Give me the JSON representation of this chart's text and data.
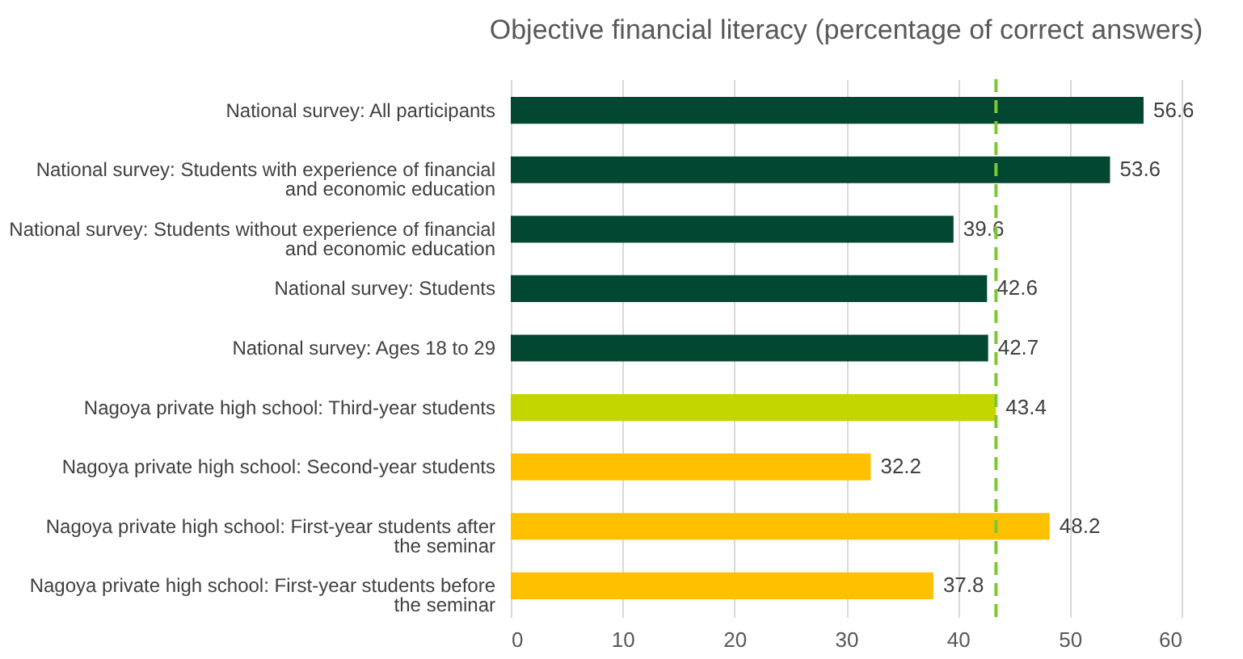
{
  "chart_data": {
    "type": "bar",
    "orientation": "horizontal",
    "title": "Objective financial literacy (percentage of correct answers)",
    "categories": [
      "National survey: All participants",
      "National survey: Students with experience of financial\nand economic education",
      "National survey: Students without experience of financial\nand economic education",
      "National survey: Students",
      "National survey: Ages 18 to 29",
      "Nagoya private high school: Third-year students",
      "Nagoya private high school: Second-year students",
      "Nagoya private high school: First-year students after\nthe seminar",
      "Nagoya private high school: First-year students before\nthe seminar"
    ],
    "values": [
      56.6,
      53.6,
      39.6,
      42.6,
      42.7,
      43.4,
      32.2,
      48.2,
      37.8
    ],
    "colors": [
      "#024731",
      "#024731",
      "#024731",
      "#024731",
      "#024731",
      "#c4d600",
      "#ffc000",
      "#ffc000",
      "#ffc000"
    ],
    "xlim": [
      0,
      60
    ],
    "xticks": [
      0,
      10,
      20,
      30,
      40,
      50,
      60
    ],
    "grid": "x",
    "data_labels": true,
    "ref_lines": [
      {
        "axis": "x",
        "value": 43.4,
        "color": "#7dc832",
        "line_style": "dashed"
      }
    ]
  }
}
